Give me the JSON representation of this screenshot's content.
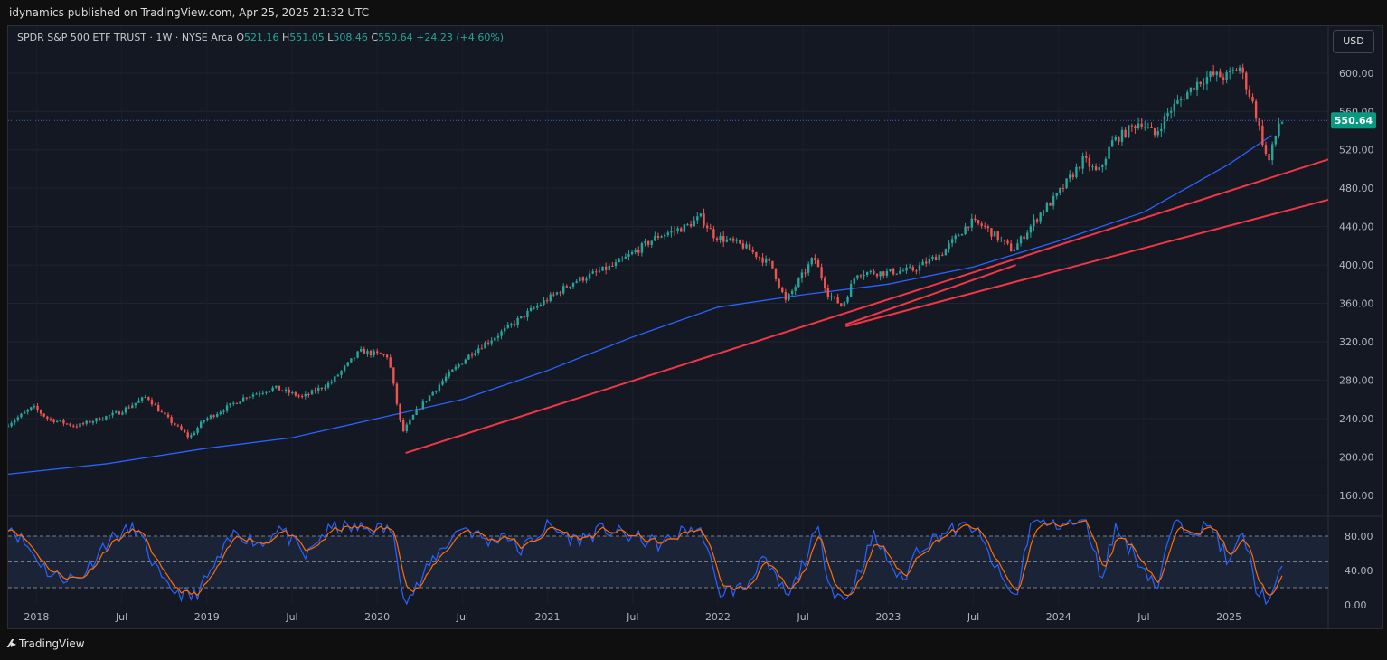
{
  "header": {
    "publisher_line": "idynamics published on TradingView.com, Apr 25, 2025 21:32 UTC"
  },
  "legend": {
    "symbol": "SPDR S&P 500 ETF TRUST · 1W · NYSE Arca",
    "o_label": "O",
    "o_value": "521.16",
    "h_label": "H",
    "h_value": "551.05",
    "l_label": "L",
    "l_value": "508.46",
    "c_label": "C",
    "c_value": "550.64",
    "change": "+24.23 (+4.60%)"
  },
  "currency_button": "USD",
  "footer": {
    "brand": "TradingView",
    "brand_icon": "tradingview-logo-icon"
  },
  "colors": {
    "up": "#26a69a",
    "down": "#ef5350",
    "ma": "#2962ff",
    "trend": "#f23645",
    "osc_k": "#2962ff",
    "osc_d": "#ff6d00",
    "badge": "#089981"
  },
  "chart_data": {
    "type": "candlestick",
    "price_axis": {
      "min": 140,
      "max": 630,
      "ticks": [
        "600.00",
        "560.00",
        "520.00",
        "480.00",
        "440.00",
        "400.00",
        "360.00",
        "320.00",
        "280.00",
        "240.00",
        "200.00",
        "160.00"
      ]
    },
    "time_axis": {
      "labels": [
        "2018",
        "Jul",
        "2019",
        "Jul",
        "2020",
        "Jul",
        "2021",
        "Jul",
        "2022",
        "Jul",
        "2023",
        "Jul",
        "2024",
        "Jul",
        "2025"
      ],
      "start": "2017-11",
      "end": "2025-08"
    },
    "last_price": "550.64",
    "price_path": [
      [
        "2017-11",
        232
      ],
      [
        "2018-01",
        252
      ],
      [
        "2018-02",
        240
      ],
      [
        "2018-04",
        232
      ],
      [
        "2018-07",
        246
      ],
      [
        "2018-09",
        263
      ],
      [
        "2018-10",
        246
      ],
      [
        "2018-12",
        220
      ],
      [
        "2019-01",
        238
      ],
      [
        "2019-04",
        263
      ],
      [
        "2019-06",
        272
      ],
      [
        "2019-08",
        262
      ],
      [
        "2019-10",
        278
      ],
      [
        "2019-12",
        310
      ],
      [
        "2020-02",
        305
      ],
      [
        "2020-03",
        225
      ],
      [
        "2020-04",
        248
      ],
      [
        "2020-06",
        282
      ],
      [
        "2020-08",
        310
      ],
      [
        "2020-10",
        330
      ],
      [
        "2020-12",
        352
      ],
      [
        "2021-03",
        382
      ],
      [
        "2021-06",
        400
      ],
      [
        "2021-08",
        420
      ],
      [
        "2021-09",
        430
      ],
      [
        "2021-11",
        440
      ],
      [
        "2021-12",
        450
      ],
      [
        "2022-01",
        430
      ],
      [
        "2022-03",
        420
      ],
      [
        "2022-05",
        400
      ],
      [
        "2022-06",
        362
      ],
      [
        "2022-08",
        408
      ],
      [
        "2022-09",
        370
      ],
      [
        "2022-10",
        357
      ],
      [
        "2022-11",
        392
      ],
      [
        "2023-01",
        392
      ],
      [
        "2023-03",
        395
      ],
      [
        "2023-05",
        412
      ],
      [
        "2023-07",
        445
      ],
      [
        "2023-08",
        440
      ],
      [
        "2023-10",
        415
      ],
      [
        "2023-12",
        455
      ],
      [
        "2024-01",
        470
      ],
      [
        "2024-03",
        510
      ],
      [
        "2024-04",
        495
      ],
      [
        "2024-05",
        528
      ],
      [
        "2024-07",
        550
      ],
      [
        "2024-08",
        535
      ],
      [
        "2024-09",
        560
      ],
      [
        "2024-11",
        590
      ],
      [
        "2024-12",
        598
      ],
      [
        "2025-01",
        596
      ],
      [
        "2025-02",
        606
      ],
      [
        "2025-03",
        565
      ],
      [
        "2025-04",
        505
      ],
      [
        "2025-04-25",
        550
      ]
    ],
    "moving_average": [
      [
        "2017-11",
        182
      ],
      [
        "2018-06",
        193
      ],
      [
        "2019-01",
        209
      ],
      [
        "2019-07",
        220
      ],
      [
        "2020-01",
        240
      ],
      [
        "2020-07",
        260
      ],
      [
        "2021-01",
        290
      ],
      [
        "2021-07",
        325
      ],
      [
        "2022-01",
        356
      ],
      [
        "2022-07",
        369
      ],
      [
        "2023-01",
        380
      ],
      [
        "2023-07",
        398
      ],
      [
        "2024-01",
        425
      ],
      [
        "2024-07",
        455
      ],
      [
        "2025-01",
        505
      ],
      [
        "2025-04",
        535
      ]
    ],
    "trendlines": [
      {
        "from": [
          "2020-03",
          204
        ],
        "to": [
          "2025-08",
          510
        ]
      },
      {
        "from": [
          "2022-10",
          336
        ],
        "to": [
          "2025-08",
          468
        ]
      },
      {
        "from": [
          "2022-10",
          338
        ],
        "to": [
          "2023-10",
          400
        ]
      }
    ],
    "oscillator": {
      "levels": [
        80,
        50,
        20
      ],
      "ticks": [
        "80.00",
        "40.00",
        "0.00"
      ],
      "path": [
        [
          "2017-11",
          95
        ],
        [
          "2018-02",
          35
        ],
        [
          "2018-04",
          30
        ],
        [
          "2018-06",
          75
        ],
        [
          "2018-08",
          90
        ],
        [
          "2018-10",
          22
        ],
        [
          "2018-12",
          8
        ],
        [
          "2019-01",
          30
        ],
        [
          "2019-03",
          85
        ],
        [
          "2019-05",
          70
        ],
        [
          "2019-06",
          92
        ],
        [
          "2019-08",
          55
        ],
        [
          "2019-09",
          80
        ],
        [
          "2019-10",
          90
        ],
        [
          "2020-02",
          88
        ],
        [
          "2020-03",
          4
        ],
        [
          "2020-04",
          25
        ],
        [
          "2020-05",
          55
        ],
        [
          "2020-07",
          92
        ],
        [
          "2020-09",
          72
        ],
        [
          "2020-10",
          85
        ],
        [
          "2020-11",
          62
        ],
        [
          "2021-01",
          92
        ],
        [
          "2021-03",
          75
        ],
        [
          "2021-05",
          88
        ],
        [
          "2021-09",
          70
        ],
        [
          "2021-11",
          90
        ],
        [
          "2021-12",
          82
        ],
        [
          "2022-01",
          15
        ],
        [
          "2022-03",
          20
        ],
        [
          "2022-04",
          55
        ],
        [
          "2022-06",
          8
        ],
        [
          "2022-08",
          88
        ],
        [
          "2022-09",
          20
        ],
        [
          "2022-10",
          4
        ],
        [
          "2022-12",
          80
        ],
        [
          "2023-02",
          25
        ],
        [
          "2023-03",
          65
        ],
        [
          "2023-05",
          85
        ],
        [
          "2023-07",
          92
        ],
        [
          "2023-09",
          30
        ],
        [
          "2023-10",
          6
        ],
        [
          "2023-11",
          95
        ],
        [
          "2024-03",
          95
        ],
        [
          "2024-04",
          30
        ],
        [
          "2024-05",
          90
        ],
        [
          "2024-08",
          20
        ],
        [
          "2024-09",
          92
        ],
        [
          "2024-12",
          88
        ],
        [
          "2025-01",
          45
        ],
        [
          "2025-02",
          85
        ],
        [
          "2025-03",
          15
        ],
        [
          "2025-04",
          5
        ],
        [
          "2025-04-25",
          45
        ]
      ]
    }
  }
}
